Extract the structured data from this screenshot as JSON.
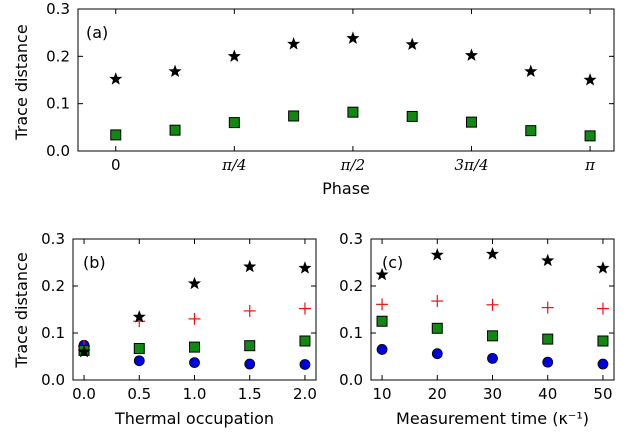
{
  "chart_data": [
    {
      "type": "scatter",
      "panel_label": "(a)",
      "xlabel": "Phase",
      "ylabel": "Trace distance",
      "xlim": [
        -0.25,
        3.3
      ],
      "ylim": [
        0.0,
        0.3
      ],
      "xticks": [
        {
          "value": 0,
          "label": "0"
        },
        {
          "value": 0.7854,
          "label": "π/4"
        },
        {
          "value": 1.5708,
          "label": "π/2"
        },
        {
          "value": 2.3562,
          "label": "3π/4"
        },
        {
          "value": 3.1416,
          "label": "π"
        }
      ],
      "yticks": [
        {
          "value": 0.0,
          "label": "0.0"
        },
        {
          "value": 0.1,
          "label": "0.1"
        },
        {
          "value": 0.2,
          "label": "0.2"
        },
        {
          "value": 0.3,
          "label": "0.3"
        }
      ],
      "grid": false,
      "series": [
        {
          "marker": "star",
          "color": "#000000",
          "x": [
            0,
            0.3927,
            0.7854,
            1.1781,
            1.5708,
            1.9635,
            2.3562,
            2.7489,
            3.1416
          ],
          "y": [
            0.152,
            0.168,
            0.2,
            0.226,
            0.238,
            0.225,
            0.202,
            0.168,
            0.15
          ]
        },
        {
          "marker": "square",
          "color": "#118811",
          "x": [
            0,
            0.3927,
            0.7854,
            1.1781,
            1.5708,
            1.9635,
            2.3562,
            2.7489,
            3.1416
          ],
          "y": [
            0.034,
            0.044,
            0.06,
            0.074,
            0.082,
            0.073,
            0.061,
            0.043,
            0.032
          ]
        }
      ]
    },
    {
      "type": "scatter",
      "panel_label": "(b)",
      "xlabel": "Thermal occupation",
      "ylabel": "Trace distance",
      "xlim": [
        -0.1,
        2.1
      ],
      "ylim": [
        0.0,
        0.3
      ],
      "xticks": [
        {
          "value": 0.0,
          "label": "0.0"
        },
        {
          "value": 0.5,
          "label": "0.5"
        },
        {
          "value": 1.0,
          "label": "1.0"
        },
        {
          "value": 1.5,
          "label": "1.5"
        },
        {
          "value": 2.0,
          "label": "2.0"
        }
      ],
      "yticks": [
        {
          "value": 0.0,
          "label": "0.0"
        },
        {
          "value": 0.1,
          "label": "0.1"
        },
        {
          "value": 0.2,
          "label": "0.2"
        },
        {
          "value": 0.3,
          "label": "0.3"
        }
      ],
      "grid": false,
      "series": [
        {
          "marker": "circle",
          "color": "#0000dd",
          "x": [
            0,
            0.5,
            1.0,
            1.5,
            2.0
          ],
          "y": [
            0.074,
            0.041,
            0.037,
            0.034,
            0.033
          ]
        },
        {
          "marker": "plus",
          "color": "#ee1111",
          "x": [
            0,
            0.5,
            1.0,
            1.5,
            2.0
          ],
          "y": [
            0.072,
            0.125,
            0.13,
            0.147,
            0.152
          ]
        },
        {
          "marker": "square",
          "color": "#118811",
          "x": [
            0,
            0.5,
            1.0,
            1.5,
            2.0
          ],
          "y": [
            0.063,
            0.067,
            0.07,
            0.073,
            0.083
          ]
        },
        {
          "marker": "star",
          "color": "#000000",
          "x": [
            0,
            0.5,
            1.0,
            1.5,
            2.0
          ],
          "y": [
            0.06,
            0.134,
            0.205,
            0.241,
            0.238
          ]
        }
      ]
    },
    {
      "type": "scatter",
      "panel_label": "(c)",
      "xlabel": "Measurement time (κ⁻¹)",
      "ylabel": "",
      "xlim": [
        8,
        52
      ],
      "ylim": [
        0.0,
        0.3
      ],
      "xticks": [
        {
          "value": 10,
          "label": "10"
        },
        {
          "value": 20,
          "label": "20"
        },
        {
          "value": 30,
          "label": "30"
        },
        {
          "value": 40,
          "label": "40"
        },
        {
          "value": 50,
          "label": "50"
        }
      ],
      "yticks": [
        {
          "value": 0.0,
          "label": "0.0"
        },
        {
          "value": 0.1,
          "label": "0.1"
        },
        {
          "value": 0.2,
          "label": "0.2"
        },
        {
          "value": 0.3,
          "label": "0.3"
        }
      ],
      "grid": false,
      "series": [
        {
          "marker": "star",
          "color": "#000000",
          "x": [
            10,
            20,
            30,
            40,
            50
          ],
          "y": [
            0.224,
            0.266,
            0.268,
            0.254,
            0.238
          ]
        },
        {
          "marker": "plus",
          "color": "#ee1111",
          "x": [
            10,
            20,
            30,
            40,
            50
          ],
          "y": [
            0.161,
            0.168,
            0.16,
            0.154,
            0.152
          ]
        },
        {
          "marker": "square",
          "color": "#118811",
          "x": [
            10,
            20,
            30,
            40,
            50
          ],
          "y": [
            0.125,
            0.11,
            0.094,
            0.087,
            0.083
          ]
        },
        {
          "marker": "circle",
          "color": "#0000dd",
          "x": [
            10,
            20,
            30,
            40,
            50
          ],
          "y": [
            0.065,
            0.056,
            0.046,
            0.038,
            0.034
          ]
        }
      ]
    }
  ]
}
